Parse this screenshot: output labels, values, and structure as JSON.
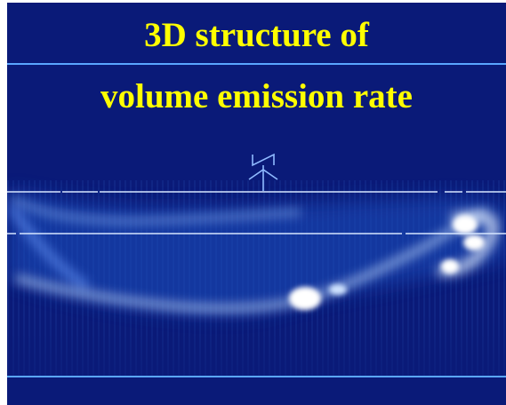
{
  "title": {
    "line1": "3D structure of",
    "line2": "volume emission rate"
  },
  "colors": {
    "background": "#0a1a78",
    "title": "#ffff00",
    "rule": "#5aa6ff",
    "emission": "#ffffff"
  },
  "icons": {
    "marker": "instrument-marker-icon"
  }
}
